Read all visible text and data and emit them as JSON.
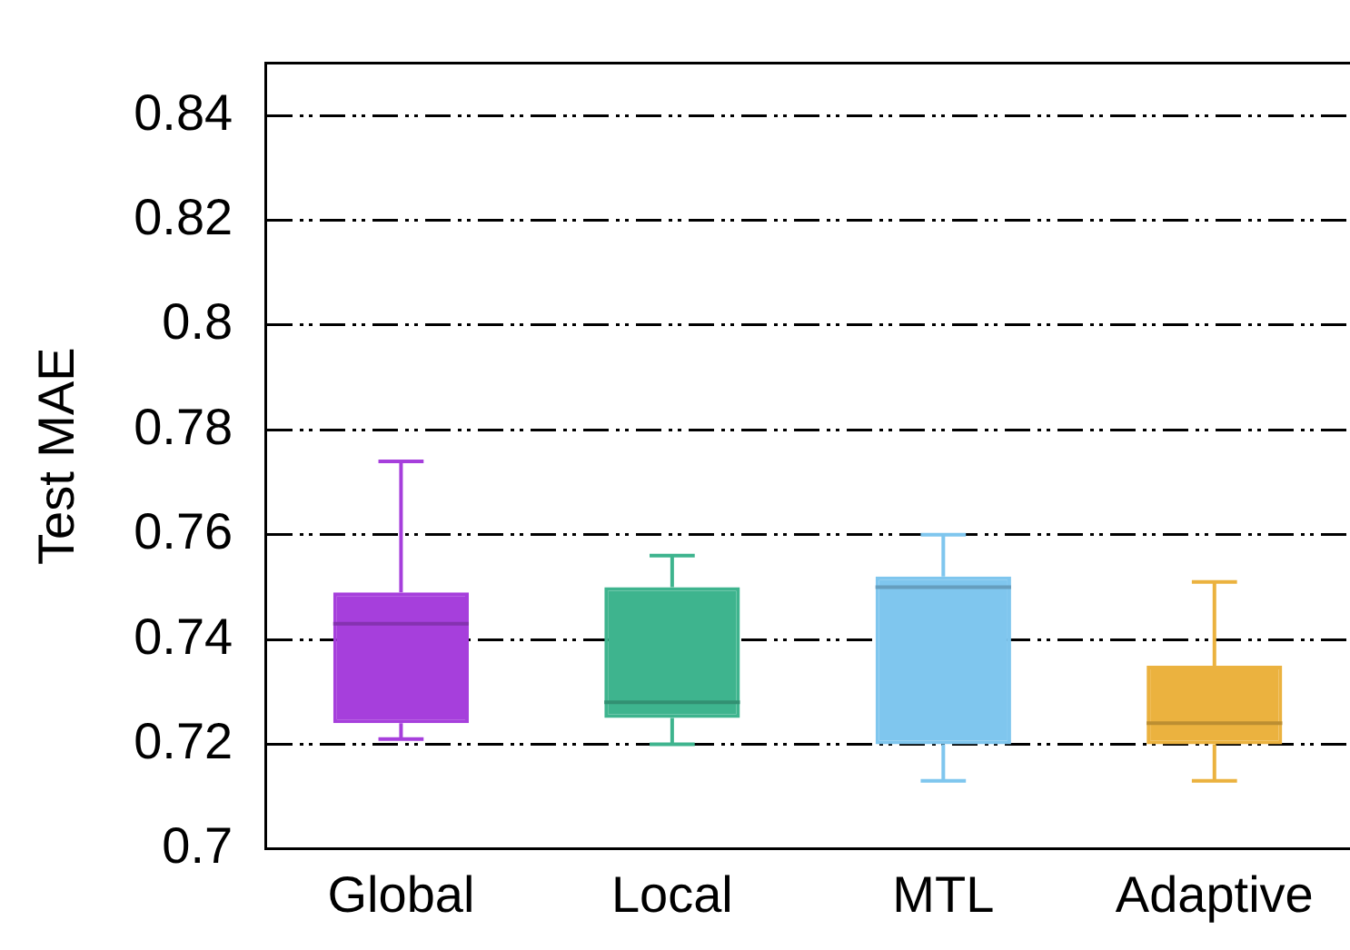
{
  "chart_data": {
    "type": "box",
    "ylabel": "Test MAE",
    "categories": [
      "Global",
      "Local",
      "MTL",
      "Adaptive"
    ],
    "boxes": [
      {
        "low": 0.721,
        "q1": 0.724,
        "median": 0.743,
        "q3": 0.749,
        "high": 0.774
      },
      {
        "low": 0.72,
        "q1": 0.725,
        "median": 0.728,
        "q3": 0.75,
        "high": 0.756
      },
      {
        "low": 0.713,
        "q1": 0.72,
        "median": 0.75,
        "q3": 0.752,
        "high": 0.76
      },
      {
        "low": 0.713,
        "q1": 0.72,
        "median": 0.724,
        "q3": 0.735,
        "high": 0.751
      }
    ],
    "colors": [
      "#a63fdc",
      "#3eb48e",
      "#7fc6ee",
      "#ebb23f"
    ],
    "ylim": [
      0.7,
      0.85
    ],
    "yticks": [
      0.7,
      0.72,
      0.74,
      0.76,
      0.78,
      0.8,
      0.82,
      0.84
    ],
    "grid": "y",
    "legend": false
  }
}
